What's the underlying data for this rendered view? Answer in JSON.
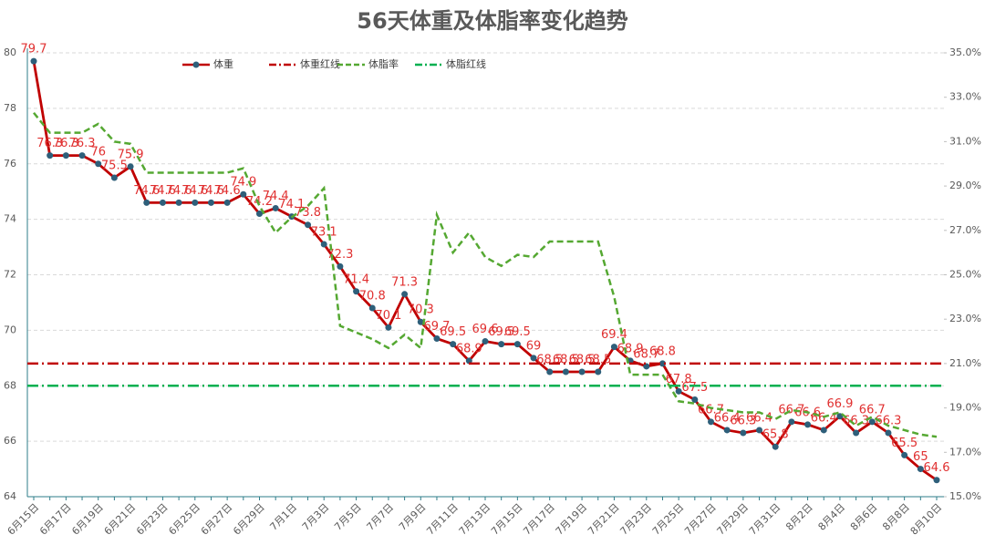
{
  "chart_data": {
    "type": "line",
    "title": "56天体重及体脂率变化趋势",
    "categories": [
      "6月15日",
      null,
      "6月17日",
      null,
      "6月19日",
      null,
      "6月21日",
      null,
      "6月23日",
      null,
      "6月25日",
      null,
      "6月27日",
      null,
      "6月29日",
      null,
      "7月1日",
      null,
      "7月3日",
      null,
      "7月5日",
      null,
      "7月7日",
      null,
      "7月9日",
      null,
      "7月11日",
      null,
      "7月13日",
      null,
      "7月15日",
      null,
      "7月17日",
      null,
      "7月19日",
      null,
      "7月21日",
      null,
      "7月23日",
      null,
      "7月25日",
      null,
      "7月27日",
      null,
      "7月29日",
      null,
      "7月31日",
      null,
      "8月2日",
      null,
      "8月4日",
      null,
      "8月6日",
      null,
      "8月8日",
      null,
      "8月10日"
    ],
    "series": [
      {
        "name": "体重",
        "color": "#c00000",
        "marker_color": "#2e5f7a",
        "values": [
          79.7,
          76.3,
          76.3,
          76.3,
          76,
          75.5,
          75.9,
          74.6,
          74.6,
          74.6,
          74.6,
          74.6,
          74.6,
          74.9,
          74.2,
          74.4,
          74.1,
          73.8,
          73.1,
          72.3,
          71.4,
          70.8,
          70.1,
          71.3,
          70.3,
          69.7,
          69.5,
          68.9,
          69.6,
          69.5,
          69.5,
          69,
          68.5,
          68.5,
          68.5,
          68.5,
          69.4,
          68.9,
          68.7,
          68.8,
          67.8,
          67.5,
          66.7,
          66.4,
          66.3,
          66.4,
          65.8,
          66.7,
          66.6,
          66.4,
          66.9,
          66.3,
          66.7,
          66.3,
          65.5,
          65,
          64.6
        ]
      },
      {
        "name": "体重红线",
        "color": "#c00000",
        "value": 68.8
      },
      {
        "name": "体脂率",
        "color": "#55a832",
        "axis": "y2",
        "values": [
          32.3,
          31.4,
          31.4,
          31.4,
          31.8,
          31.0,
          30.9,
          29.6,
          29.6,
          29.6,
          29.6,
          29.6,
          29.6,
          29.8,
          28.1,
          26.9,
          27.6,
          28.1,
          28.9,
          22.7,
          22.4,
          22.1,
          21.7,
          22.3,
          21.7,
          27.7,
          26.0,
          26.9,
          25.8,
          25.4,
          25.9,
          25.8,
          26.5,
          26.5,
          26.5,
          26.5,
          24.0,
          20.5,
          20.5,
          20.5,
          19.3,
          19.2,
          19.0,
          18.9,
          18.8,
          18.8,
          18.5,
          18.9,
          18.8,
          18.6,
          18.8,
          18.2,
          18.6,
          18.2,
          18.0,
          17.8,
          17.7
        ]
      },
      {
        "name": "体脂红线",
        "color": "#00b050",
        "axis": "y2",
        "value": 20.0
      }
    ],
    "ylim": [
      64,
      80
    ],
    "yticks": [
      64,
      66,
      68,
      70,
      72,
      74,
      76,
      78,
      80
    ],
    "y2lim": [
      15,
      35
    ],
    "y2ticks": [
      {
        "value": 15,
        "label": "15.0%"
      },
      {
        "value": 17,
        "label": "17.0%"
      },
      {
        "value": 19,
        "label": "19.0%"
      },
      {
        "value": 21,
        "label": "21.0%"
      },
      {
        "value": 23,
        "label": "23.0%"
      },
      {
        "value": 25,
        "label": "25.0%"
      },
      {
        "value": 27,
        "label": "27.0%"
      },
      {
        "value": 29,
        "label": "29.0%"
      },
      {
        "value": 31,
        "label": "31.0%"
      },
      {
        "value": 33,
        "label": "33.0%"
      },
      {
        "value": 35,
        "label": "35.0%"
      }
    ],
    "grid": true,
    "legend": "top"
  }
}
